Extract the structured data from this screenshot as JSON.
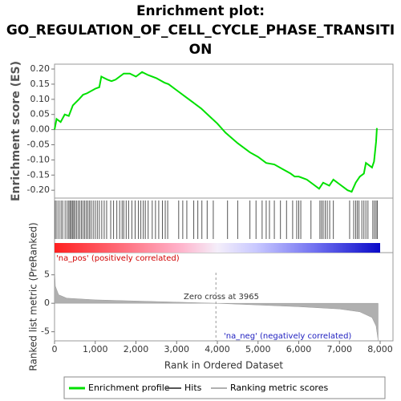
{
  "chart_data": [
    {
      "type": "line",
      "title": [
        "Enrichment plot:",
        "GO_REGULATION_OF_CELL_CYCLE_PHASE_TRANSITI",
        "ON"
      ],
      "ylabel": "Enrichment score (ES)",
      "xlim": [
        0,
        8315
      ],
      "ylim": [
        -0.226,
        0.216
      ],
      "yticks": [
        {
          "value": 0.2,
          "label": "0.20"
        },
        {
          "value": 0.15,
          "label": "0.15"
        },
        {
          "value": 0.1,
          "label": "0.10"
        },
        {
          "value": 0.05,
          "label": "0.05"
        },
        {
          "value": 0,
          "label": "0.00"
        },
        {
          "value": -0.05,
          "label": "-0.05"
        },
        {
          "value": -0.1,
          "label": "-0.10"
        },
        {
          "value": -0.15,
          "label": "-0.15"
        },
        {
          "value": -0.2,
          "label": "-0.20"
        }
      ],
      "series": [
        {
          "name": "Enrichment profile",
          "color": "#00e000",
          "x": [
            0,
            50,
            150,
            250,
            350,
            450,
            600,
            700,
            800,
            1000,
            1100,
            1150,
            1300,
            1400,
            1500,
            1700,
            1850,
            2000,
            2150,
            2300,
            2500,
            2700,
            2800,
            3000,
            3200,
            3400,
            3600,
            3800,
            4000,
            4200,
            4500,
            4800,
            5000,
            5200,
            5400,
            5600,
            5800,
            5900,
            6000,
            6200,
            6400,
            6500,
            6600,
            6750,
            6850,
            7000,
            7200,
            7300,
            7400,
            7500,
            7600,
            7650,
            7800,
            7850,
            7900,
            7920
          ],
          "values": [
            0.0,
            0.035,
            0.025,
            0.05,
            0.045,
            0.08,
            0.1,
            0.115,
            0.12,
            0.135,
            0.14,
            0.175,
            0.165,
            0.16,
            0.165,
            0.185,
            0.185,
            0.175,
            0.19,
            0.18,
            0.17,
            0.155,
            0.15,
            0.13,
            0.11,
            0.09,
            0.07,
            0.045,
            0.02,
            -0.01,
            -0.045,
            -0.075,
            -0.09,
            -0.11,
            -0.115,
            -0.13,
            -0.145,
            -0.155,
            -0.155,
            -0.165,
            -0.185,
            -0.195,
            -0.175,
            -0.185,
            -0.165,
            -0.18,
            -0.2,
            -0.205,
            -0.175,
            -0.155,
            -0.145,
            -0.11,
            -0.125,
            -0.105,
            -0.04,
            0.005
          ]
        }
      ]
    },
    {
      "type": "hits",
      "xlim": [
        0,
        8315
      ],
      "series": [
        {
          "name": "Hits",
          "color": "#555555",
          "x": [
            20,
            60,
            110,
            160,
            200,
            260,
            310,
            350,
            380,
            410,
            440,
            470,
            500,
            540,
            580,
            620,
            660,
            700,
            740,
            780,
            820,
            860,
            900,
            950,
            1000,
            1050,
            1100,
            1160,
            1220,
            1280,
            1380,
            1450,
            1530,
            1600,
            1660,
            1700,
            1760,
            1820,
            1900,
            1980,
            2060,
            2120,
            2180,
            2230,
            2300,
            2400,
            2480,
            2560,
            2650,
            2720,
            2780,
            3050,
            3150,
            3250,
            3420,
            3520,
            3620,
            3750,
            3900,
            4250,
            4500,
            4800,
            4950,
            5100,
            5200,
            5280,
            5400,
            5550,
            5700,
            5850,
            5950,
            6000,
            6050,
            6300,
            6520,
            6560,
            6600,
            6650,
            6700,
            6760,
            6850,
            7250,
            7350,
            7400,
            7440,
            7480,
            7550,
            7600,
            7650,
            7700,
            7820,
            7860,
            7900,
            7930
          ]
        }
      ]
    },
    {
      "type": "area",
      "ylabel": "Ranked list metric (PreRanked)",
      "xlabel": "Rank in Ordered Dataset",
      "xlim": [
        0,
        8315
      ],
      "ylim": [
        -6.6,
        8.9
      ],
      "yticks": [
        5,
        0,
        -5
      ],
      "xticks": [
        0,
        {
          "value": 1000,
          "label": "1,000"
        },
        {
          "value": 2000,
          "label": "2,000"
        },
        {
          "value": 3000,
          "label": "3,000"
        },
        {
          "value": 4000,
          "label": "4,000"
        },
        {
          "value": 5000,
          "label": "5,000"
        },
        {
          "value": 6000,
          "label": "6,000"
        },
        {
          "value": 7000,
          "label": "7,000"
        },
        {
          "value": 8000,
          "label": "8,000"
        }
      ],
      "zero_cross": 3965,
      "annotations": [
        "'na_pos' (positively correlated)",
        "Zero cross at 3965",
        "'na_neg' (negatively correlated)"
      ],
      "series": [
        {
          "name": "Ranking metric scores",
          "color": "#b0b0b0",
          "x": [
            0,
            20,
            100,
            300,
            1000,
            2000,
            3000,
            3965,
            5000,
            6000,
            7000,
            7500,
            7800,
            7900,
            7950
          ],
          "values": [
            6.0,
            3.0,
            1.5,
            0.9,
            0.6,
            0.4,
            0.2,
            0,
            -0.3,
            -0.6,
            -1.0,
            -1.5,
            -2.5,
            -4.0,
            -6.5
          ]
        }
      ]
    }
  ]
}
